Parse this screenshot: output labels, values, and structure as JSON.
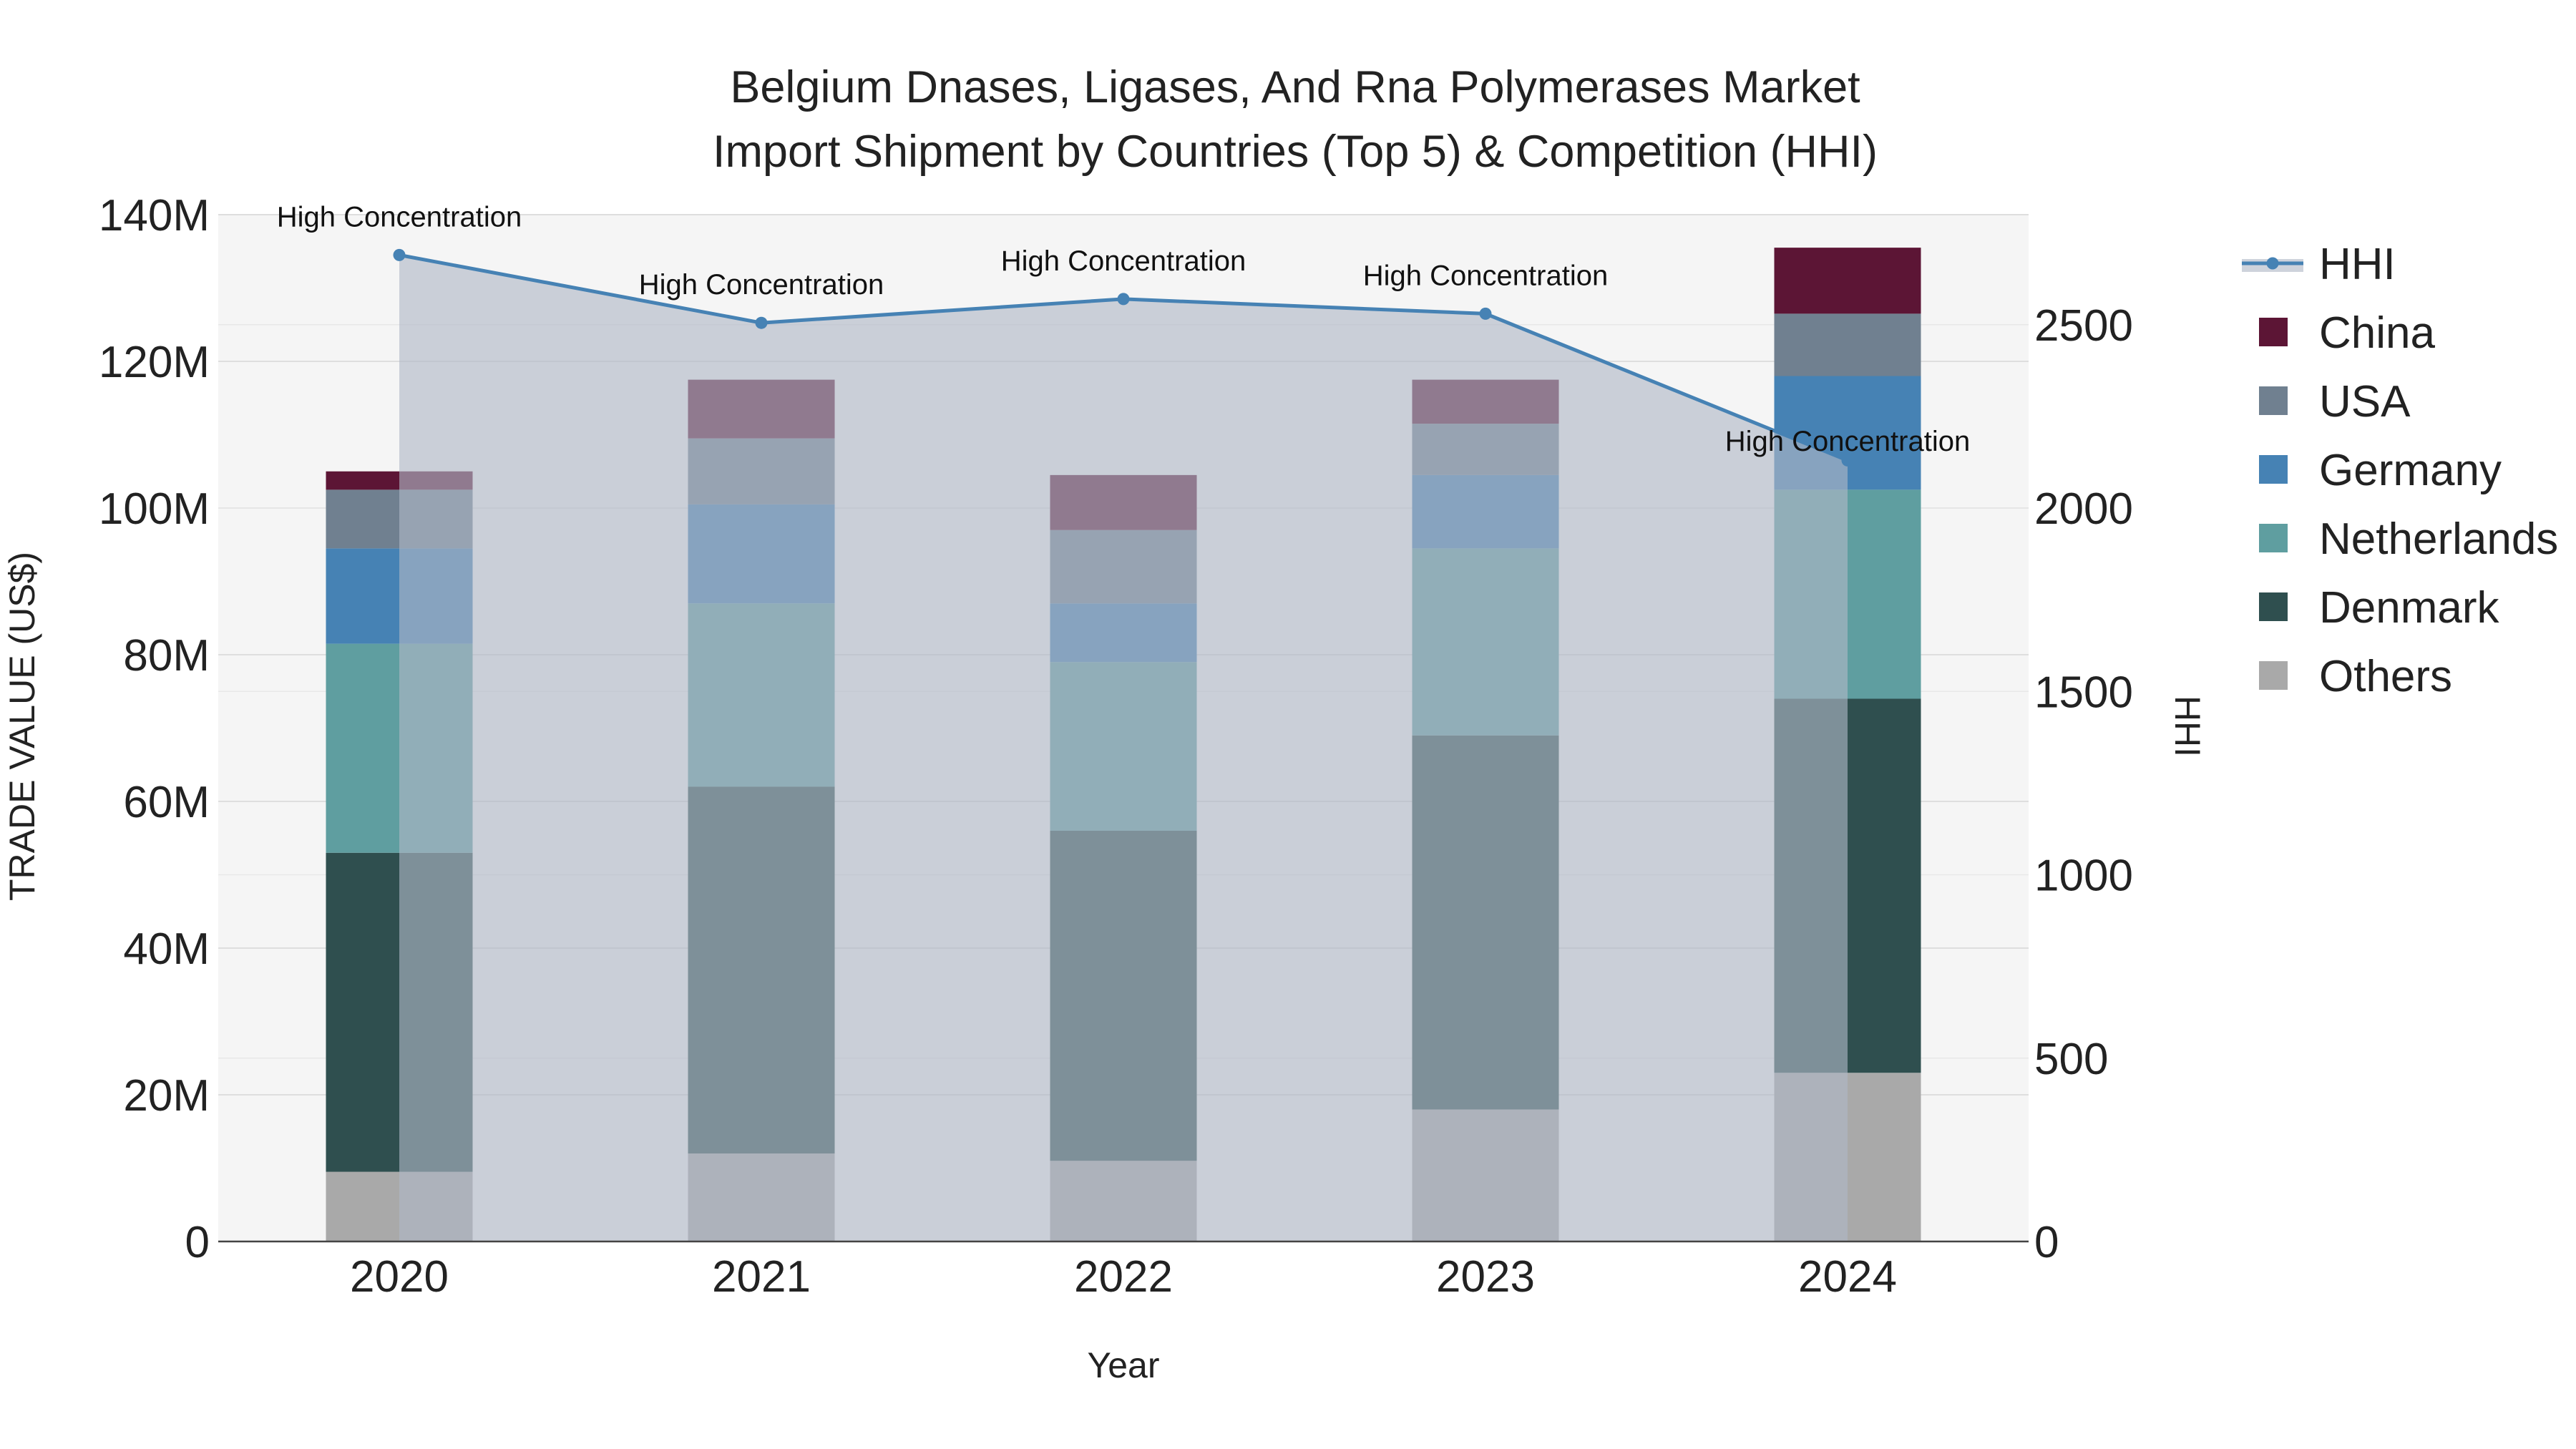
{
  "chart_data": {
    "type": "bar",
    "title_line1": "Belgium Dnases, Ligases, And Rna Polymerases Market",
    "title_line2": "Import Shipment by Countries (Top 5) & Competition (HHI)",
    "xlabel": "Year",
    "ylabel": "TRADE VALUE (US$)",
    "y2label": "HHI",
    "categories": [
      "2020",
      "2021",
      "2022",
      "2023",
      "2024"
    ],
    "ylim": [
      0,
      140000000
    ],
    "y2lim": [
      0,
      2800
    ],
    "yticks": [
      0,
      20000000,
      40000000,
      60000000,
      80000000,
      100000000,
      120000000,
      140000000
    ],
    "ytick_labels": [
      "0",
      "20M",
      "40M",
      "60M",
      "80M",
      "100M",
      "120M",
      "140M"
    ],
    "y2ticks": [
      0,
      500,
      1000,
      1500,
      2000,
      2500
    ],
    "y2tick_labels": [
      "0",
      "500",
      "1000",
      "1500",
      "2000",
      "2500"
    ],
    "series": [
      {
        "name": "Others",
        "color": "#a9a9a9",
        "values": [
          9500000,
          12000000,
          11000000,
          18000000,
          23000000
        ]
      },
      {
        "name": "Denmark",
        "color": "#2f4f4f",
        "values": [
          43500000,
          50000000,
          45000000,
          51000000,
          51000000
        ]
      },
      {
        "name": "Netherlands",
        "color": "#5f9ea0",
        "values": [
          28500000,
          25000000,
          23000000,
          25500000,
          28500000
        ]
      },
      {
        "name": "Germany",
        "color": "#4682b4",
        "values": [
          13000000,
          13500000,
          8000000,
          10000000,
          15500000
        ]
      },
      {
        "name": "USA",
        "color": "#708090",
        "values": [
          8000000,
          9000000,
          10000000,
          7000000,
          8500000
        ]
      },
      {
        "name": "China",
        "color": "#5c1535",
        "values": [
          2500000,
          8000000,
          7500000,
          6000000,
          9000000
        ]
      }
    ],
    "hhi": {
      "name": "HHI",
      "color": "#4682b4",
      "values": [
        2690,
        2505,
        2570,
        2530,
        2130
      ],
      "annotations": [
        "High Concentration",
        "High Concentration",
        "High Concentration",
        "High Concentration",
        "High Concentration"
      ]
    },
    "legend_order": [
      "HHI",
      "China",
      "USA",
      "Germany",
      "Netherlands",
      "Denmark",
      "Others"
    ],
    "legend_position": "right",
    "grid": true
  }
}
